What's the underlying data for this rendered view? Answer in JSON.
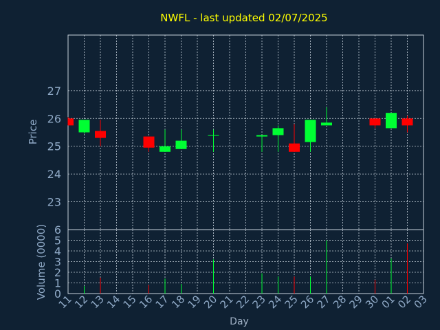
{
  "chart_data": {
    "type": "candlestick",
    "title": "NWFL - last updated 02/07/2025",
    "xlabel": "Day",
    "price_panel": {
      "ylabel": "Price",
      "yticks": [
        23,
        24,
        25,
        26,
        27
      ],
      "ylim": [
        22.0,
        29.0
      ]
    },
    "volume_panel": {
      "ylabel": "Volume (0000)",
      "yticks": [
        0,
        1,
        2,
        3,
        4,
        5,
        6
      ],
      "ylim": [
        0,
        6
      ]
    },
    "x_tick_labels": [
      "11",
      "12",
      "13",
      "14",
      "15",
      "16",
      "17",
      "18",
      "19",
      "20",
      "21",
      "22",
      "23",
      "24",
      "25",
      "26",
      "27",
      "28",
      "29",
      "30",
      "01",
      "02",
      "03"
    ],
    "grid": true,
    "colors": {
      "up": "#00ff33",
      "down": "#ff0000",
      "grid": "#c8d2dc",
      "axis_text": "#8fa9c6",
      "title": "#ffff00",
      "background": "#0f2133"
    },
    "candles": [
      {
        "day": "11",
        "open": 26.0,
        "high": 26.05,
        "low": 25.75,
        "close": 25.75,
        "volume": 0
      },
      {
        "day": "12",
        "open": 25.5,
        "high": 25.95,
        "low": 25.45,
        "close": 25.95,
        "volume": 0.7
      },
      {
        "day": "13",
        "open": 25.55,
        "high": 25.95,
        "low": 25.0,
        "close": 25.3,
        "volume": 1.5
      },
      {
        "day": "16",
        "open": 25.35,
        "high": 25.35,
        "low": 24.8,
        "close": 24.95,
        "volume": 0.8
      },
      {
        "day": "17",
        "open": 24.8,
        "high": 25.6,
        "low": 24.8,
        "close": 25.0,
        "volume": 1.4
      },
      {
        "day": "18",
        "open": 24.9,
        "high": 25.6,
        "low": 24.9,
        "close": 25.2,
        "volume": 0.9
      },
      {
        "day": "20",
        "open": 25.4,
        "high": 25.6,
        "low": 24.8,
        "close": 25.4,
        "volume": 3.2
      },
      {
        "day": "23",
        "open": 25.35,
        "high": 25.4,
        "low": 24.8,
        "close": 25.4,
        "volume": 1.9
      },
      {
        "day": "24",
        "open": 25.4,
        "high": 25.75,
        "low": 24.8,
        "close": 25.65,
        "volume": 1.6
      },
      {
        "day": "25",
        "open": 25.1,
        "high": 25.8,
        "low": 24.8,
        "close": 24.8,
        "volume": 1.6
      },
      {
        "day": "26",
        "open": 25.15,
        "high": 25.95,
        "low": 24.8,
        "close": 25.95,
        "volume": 1.6
      },
      {
        "day": "27",
        "open": 25.75,
        "high": 26.4,
        "low": 25.75,
        "close": 25.85,
        "volume": 5.0
      },
      {
        "day": "30",
        "open": 26.0,
        "high": 26.0,
        "low": 25.65,
        "close": 25.75,
        "volume": 1.3
      },
      {
        "day": "01",
        "open": 25.65,
        "high": 26.2,
        "low": 25.65,
        "close": 26.2,
        "volume": 3.3
      },
      {
        "day": "02",
        "open": 26.0,
        "high": 26.1,
        "low": 25.5,
        "close": 25.75,
        "volume": 4.7
      }
    ]
  }
}
